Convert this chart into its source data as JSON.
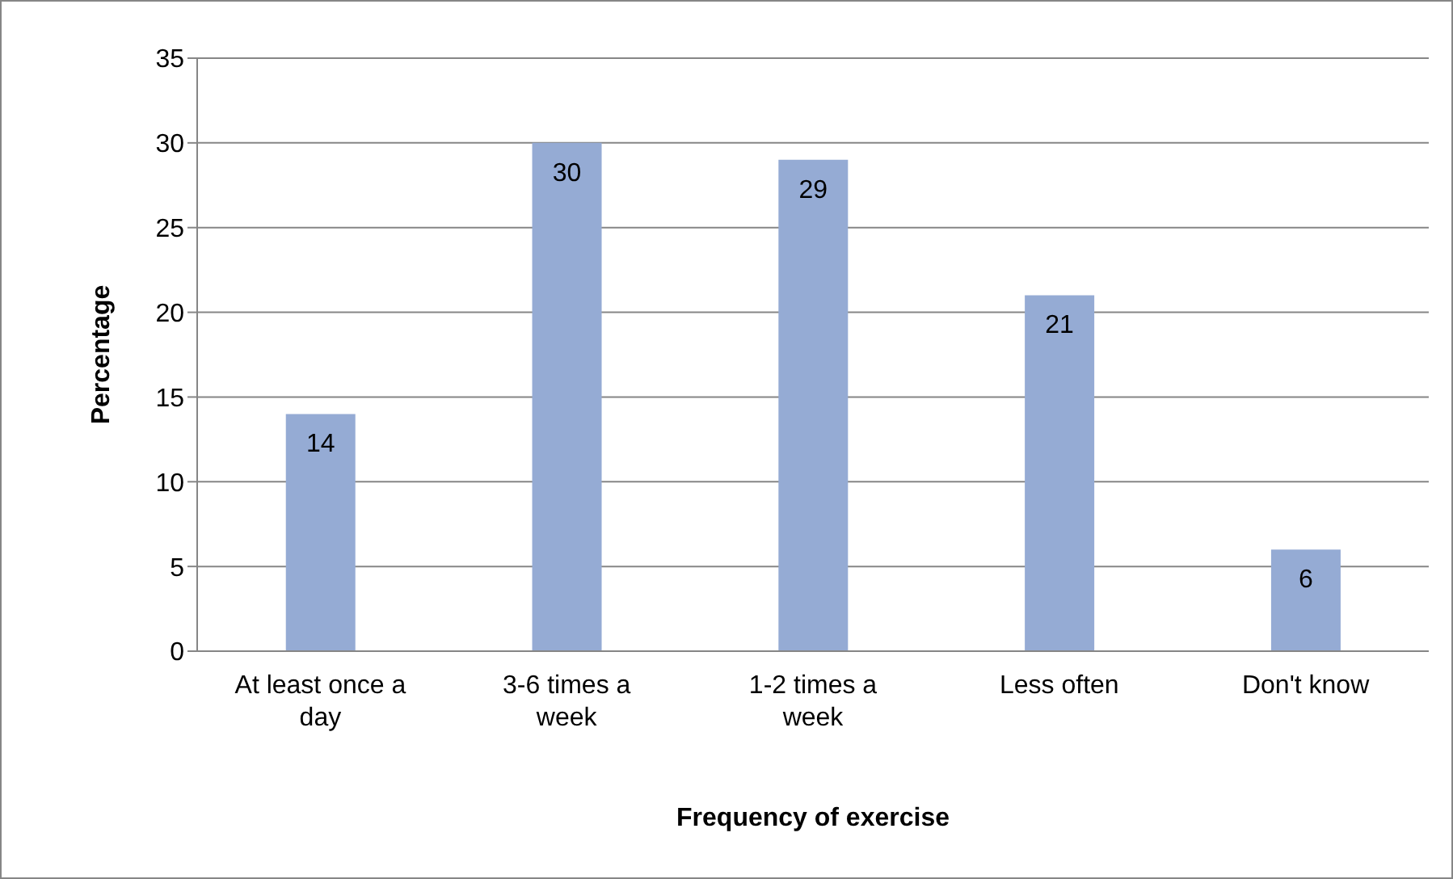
{
  "chart_data": {
    "type": "bar",
    "xlabel": "Frequency of exercise",
    "ylabel": "Percentage",
    "categories": [
      "At least once a day",
      "3-6 times a week",
      "1-2 times a week",
      "Less often",
      "Don't know"
    ],
    "values": [
      14,
      30,
      29,
      21,
      6
    ],
    "color": "#95abd4",
    "ylim": [
      0,
      35
    ],
    "yticks": [
      0,
      5,
      10,
      15,
      20,
      25,
      30,
      35
    ],
    "grid": "y",
    "data_labels": true
  }
}
